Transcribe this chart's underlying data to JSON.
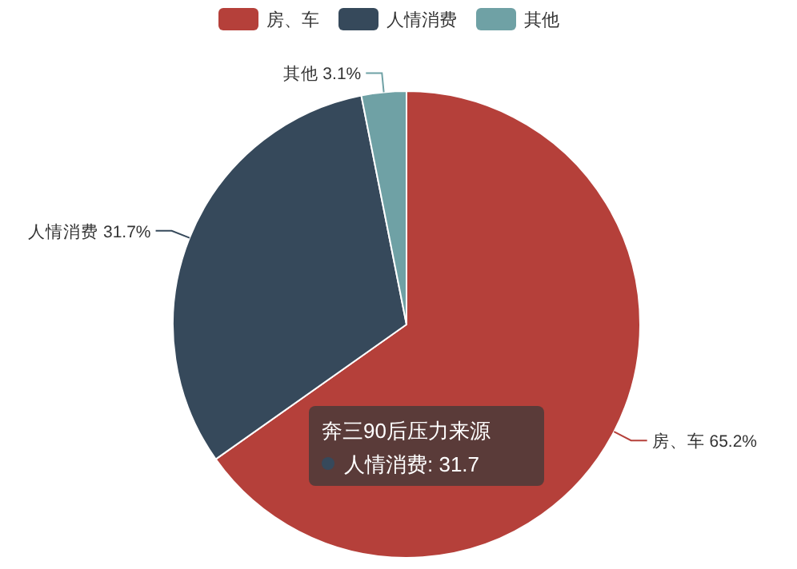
{
  "chart_data": {
    "type": "pie",
    "categories": [
      "房、车",
      "人情消费",
      "其他"
    ],
    "values": [
      65.2,
      31.7,
      3.1
    ],
    "value_labels": [
      "65.2%",
      "31.7%",
      "3.1%"
    ],
    "colors": [
      "#b5403a",
      "#36495b",
      "#6fa1a5"
    ],
    "legend": "top",
    "annotations": [
      "奔三90后压力来源",
      "人情消费: 31.7"
    ]
  }
}
